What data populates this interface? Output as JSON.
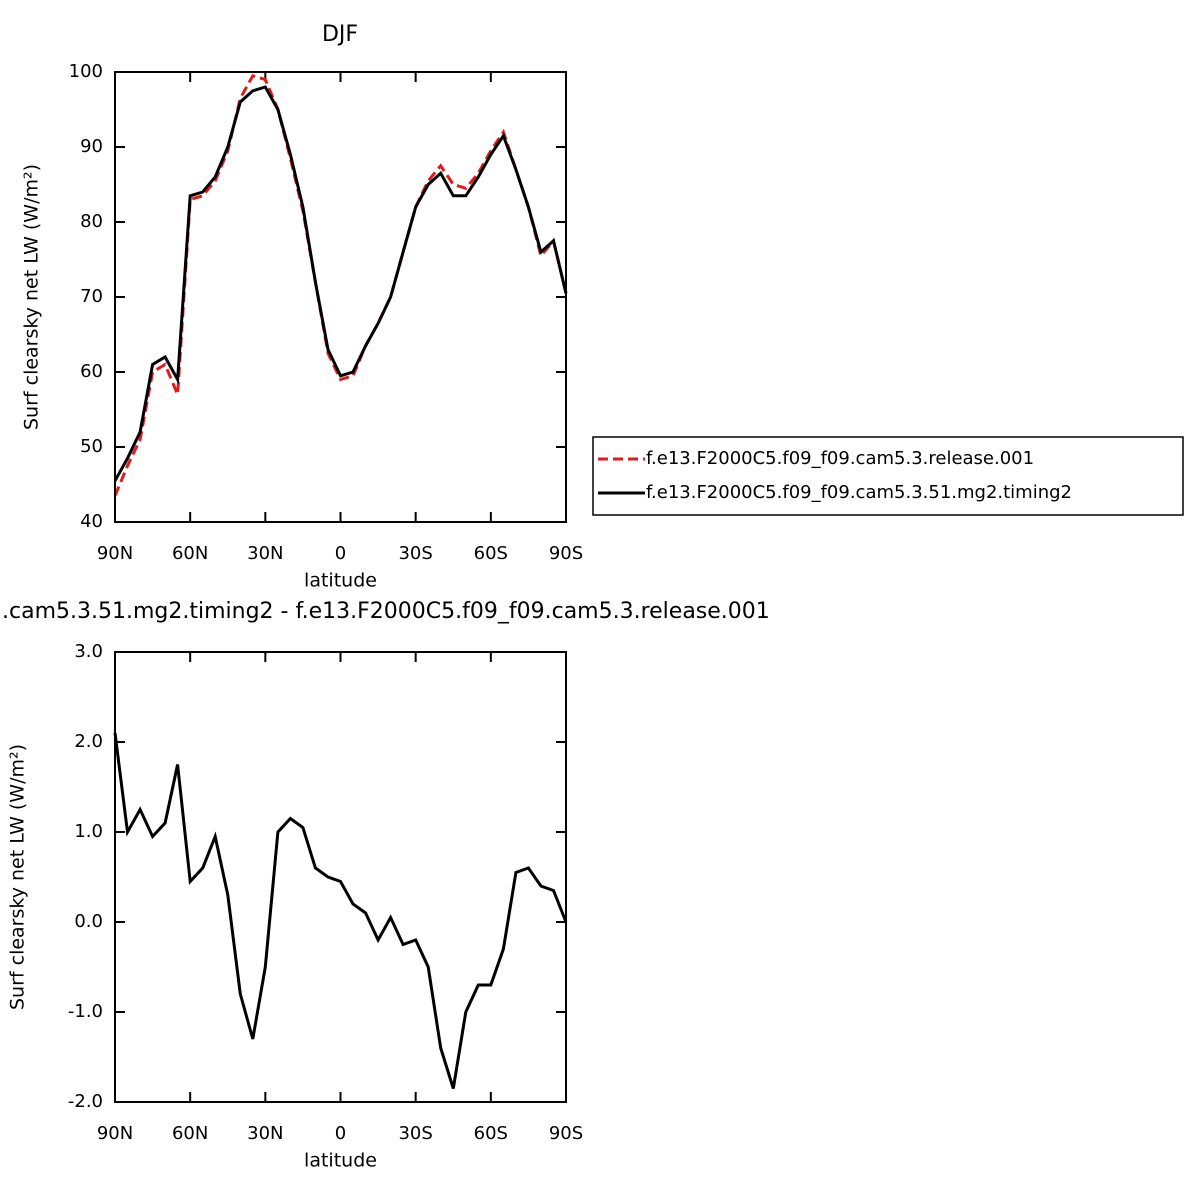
{
  "chart_data": [
    {
      "type": "line",
      "title": "DJF",
      "xlabel": "latitude",
      "ylabel": "Surf clearsky net LW (W/m²)",
      "x": [
        90,
        85,
        80,
        75,
        70,
        65,
        60,
        55,
        50,
        45,
        40,
        35,
        30,
        25,
        20,
        15,
        10,
        5,
        0,
        -5,
        -10,
        -15,
        -20,
        -25,
        -30,
        -35,
        -40,
        -45,
        -50,
        -55,
        -60,
        -65,
        -70,
        -75,
        -80,
        -85,
        -90
      ],
      "xlim": [
        90,
        -90
      ],
      "xticks": [
        {
          "value": 90,
          "label": "90N"
        },
        {
          "value": 60,
          "label": "60N"
        },
        {
          "value": 30,
          "label": "30N"
        },
        0,
        {
          "value": -30,
          "label": "30S"
        },
        {
          "value": -60,
          "label": "60S"
        },
        {
          "value": -90,
          "label": "90S"
        }
      ],
      "ylim": [
        40,
        100
      ],
      "yticks": [
        40,
        50,
        60,
        70,
        80,
        90,
        100
      ],
      "legend": "right",
      "series": [
        {
          "name": "f.e13.F2000C5.f09_f09.cam5.3.release.001",
          "color": "#e31a1c",
          "dash": true,
          "values": [
            43.5,
            47.5,
            51,
            60,
            61,
            57,
            83,
            83.5,
            85.5,
            89.5,
            96.5,
            99.5,
            99,
            95,
            88.5,
            81.5,
            72,
            62.5,
            59,
            59.5,
            63.5,
            66.5,
            70,
            76,
            82,
            85.5,
            87.5,
            85,
            84.5,
            86.5,
            89.5,
            92,
            87,
            82,
            75.5,
            77.5,
            70.5
          ]
        },
        {
          "name": "f.e13.F2000C5.f09_f09.cam5.3.51.mg2.timing2",
          "color": "#000000",
          "dash": false,
          "values": [
            45.5,
            48.5,
            52,
            61,
            62,
            59,
            83.5,
            84,
            86,
            90,
            96,
            97.5,
            98,
            95,
            89,
            82,
            72,
            63,
            59.5,
            60,
            63.5,
            66.5,
            70,
            76,
            82,
            85,
            86.5,
            83.5,
            83.5,
            86,
            89,
            91.5,
            87,
            82,
            76,
            77.5,
            70.5
          ]
        }
      ]
    },
    {
      "type": "line",
      "title": ".cam5.3.51.mg2.timing2 - f.e13.F2000C5.f09_f09.cam5.3.release.001",
      "xlabel": "latitude",
      "ylabel": "Surf clearsky net LW (W/m²)",
      "x": [
        90,
        85,
        80,
        75,
        70,
        65,
        60,
        55,
        50,
        45,
        40,
        35,
        30,
        25,
        20,
        15,
        10,
        5,
        0,
        -5,
        -10,
        -15,
        -20,
        -25,
        -30,
        -35,
        -40,
        -45,
        -50,
        -55,
        -60,
        -65,
        -70,
        -75,
        -80,
        -85,
        -90
      ],
      "xlim": [
        90,
        -90
      ],
      "xticks": [
        {
          "value": 90,
          "label": "90N"
        },
        {
          "value": 60,
          "label": "60N"
        },
        {
          "value": 30,
          "label": "30N"
        },
        0,
        {
          "value": -30,
          "label": "30S"
        },
        {
          "value": -60,
          "label": "60S"
        },
        {
          "value": -90,
          "label": "90S"
        }
      ],
      "ylim": [
        -2,
        3
      ],
      "yticks": [
        {
          "value": -2,
          "label": "-2.0"
        },
        {
          "value": -1,
          "label": "-1.0"
        },
        {
          "value": 0,
          "label": "0.0"
        },
        {
          "value": 1,
          "label": "1.0"
        },
        {
          "value": 2,
          "label": "2.0"
        },
        {
          "value": 3,
          "label": "3.0"
        }
      ],
      "color": "#000000",
      "values": [
        2.1,
        1.0,
        1.25,
        0.95,
        1.1,
        1.75,
        0.45,
        0.6,
        0.95,
        0.3,
        -0.8,
        -1.3,
        -0.5,
        1.0,
        1.15,
        1.05,
        0.6,
        0.5,
        0.45,
        0.2,
        0.1,
        -0.2,
        0.05,
        -0.25,
        -0.2,
        -0.5,
        -1.4,
        -1.85,
        -1.0,
        -0.7,
        -0.7,
        -0.3,
        0.55,
        0.6,
        0.4,
        0.35,
        0.0
      ]
    }
  ]
}
